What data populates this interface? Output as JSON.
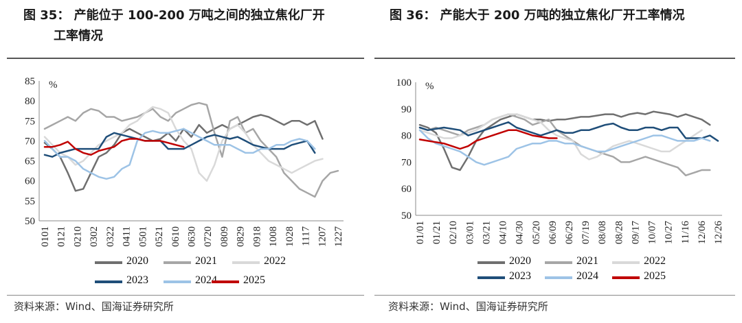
{
  "figure_left": {
    "title_line1": "图 35：  产能位于 100-200 万吨之间的独立焦化厂开",
    "title_line2": "工率情况",
    "source": "资料来源：Wind、国海证券研究所"
  },
  "figure_right": {
    "title_line1": "图 36：  产能大于 200 万吨的独立焦化厂开工率情况",
    "source": "资料来源：Wind、国海证券研究所"
  },
  "colors": {
    "2020": "#6f6f6f",
    "2021": "#a6a6a6",
    "2022": "#d9d9d9",
    "2023": "#1f4e79",
    "2024": "#9dc3e6",
    "2025": "#c00000"
  },
  "chart_data": [
    {
      "type": "line",
      "title": "产能位于 100-200 万吨之间的独立焦化厂开工率情况",
      "unit_label": "%",
      "ylim": [
        50,
        85
      ],
      "yticks": [
        "85",
        "80",
        "75",
        "70",
        "65",
        "60",
        "55",
        "50"
      ],
      "xlabel_ticks": [
        "0101",
        "0121",
        "0210",
        "0302",
        "0322",
        "0411",
        "0501",
        "0521",
        "0610",
        "0630",
        "0720",
        "0809",
        "0829",
        "0918",
        "1008",
        "1028",
        "1117",
        "1207",
        "1227"
      ],
      "legend": [
        "2020",
        "2021",
        "2022",
        "2023",
        "2024",
        "2025"
      ],
      "series": [
        {
          "name": "2020",
          "values": [
            69.5,
            68,
            66,
            62,
            57.5,
            58,
            62,
            66,
            67,
            69,
            72,
            73,
            72,
            71,
            70,
            70.5,
            72,
            70,
            73,
            71,
            74,
            72,
            73,
            74,
            73,
            74,
            75,
            76,
            76.5,
            76,
            75,
            74,
            75,
            75,
            74,
            75,
            70.5
          ]
        },
        {
          "name": "2021",
          "values": [
            73,
            74,
            75,
            76,
            75,
            77,
            78,
            77.5,
            76,
            76,
            75,
            75.5,
            76,
            77,
            78,
            76,
            75,
            77,
            78,
            79,
            79.5,
            79,
            72,
            66,
            75,
            76,
            72,
            73,
            70,
            68,
            66,
            62,
            60,
            58,
            57,
            56,
            60,
            62,
            62.5
          ]
        },
        {
          "name": "2022",
          "values": [
            71,
            69,
            67,
            66,
            64,
            65,
            67,
            69,
            70,
            71,
            72,
            74,
            75,
            77,
            78.5,
            78,
            77,
            73,
            70,
            68,
            62,
            60,
            64,
            70,
            73,
            74,
            72,
            69,
            67,
            65,
            64,
            63,
            62,
            63,
            64,
            65,
            65.5
          ]
        },
        {
          "name": "2023",
          "values": [
            66.5,
            66,
            67,
            67.5,
            68,
            68,
            68,
            68,
            71,
            72,
            71.5,
            71,
            70.5,
            70,
            70,
            70,
            68,
            68,
            68,
            69,
            70,
            71,
            71.5,
            71,
            70.5,
            71,
            70,
            69,
            68.5,
            68,
            68,
            68,
            69,
            69.5,
            70,
            67
          ]
        },
        {
          "name": "2024",
          "values": [
            70,
            68,
            66,
            66,
            65,
            63,
            62,
            61,
            60.5,
            61,
            63,
            64,
            70,
            72,
            72.5,
            72,
            72,
            72.5,
            73,
            72,
            71,
            70,
            69,
            69,
            69,
            68,
            67,
            67,
            68,
            68,
            69,
            69,
            70,
            70.5,
            70,
            68
          ]
        },
        {
          "name": "2025",
          "values": [
            68.5,
            68.5,
            69,
            69.8,
            68,
            67,
            66.5,
            67.5,
            68,
            68.5,
            70,
            70.5,
            70.5,
            70,
            70,
            70,
            69.5,
            69,
            68.5
          ]
        }
      ]
    },
    {
      "type": "line",
      "title": "产能大于 200 万吨的独立焦化厂开工率情况",
      "unit_label": "%",
      "ylim": [
        50,
        100
      ],
      "yticks": [
        "100",
        "90",
        "80",
        "70",
        "60",
        "50"
      ],
      "xlabel_ticks": [
        "01/01",
        "01/21",
        "02/10",
        "03/01",
        "03/21",
        "04/10",
        "04/30",
        "05/20",
        "06/09",
        "06/29",
        "07/19",
        "08/08",
        "08/28",
        "09/17",
        "10/07",
        "10/27",
        "11/16",
        "12/06",
        "12/26"
      ],
      "legend": [
        "2020",
        "2021",
        "2022",
        "2023",
        "2024",
        "2025"
      ],
      "series": [
        {
          "name": "2020",
          "values": [
            84,
            83,
            81,
            75,
            68,
            67,
            72,
            78,
            82,
            84,
            86,
            87,
            88,
            87,
            86,
            86,
            85.5,
            86,
            86,
            86.5,
            87,
            87,
            87.5,
            88,
            88,
            87,
            88,
            88.5,
            88,
            89,
            88.5,
            88,
            87,
            88,
            87,
            86,
            84
          ]
        },
        {
          "name": "2021",
          "values": [
            83,
            82,
            83,
            82,
            81,
            80,
            82,
            83,
            84,
            86,
            87,
            88,
            87,
            86,
            84,
            85,
            86,
            82,
            80,
            78,
            76,
            75,
            74,
            73,
            72,
            70,
            70,
            71,
            72,
            71,
            70,
            69,
            68,
            65,
            66,
            67,
            67
          ]
        },
        {
          "name": "2022",
          "values": [
            82,
            81,
            80,
            79,
            79,
            80,
            81,
            82,
            84,
            86,
            87,
            88,
            88,
            87,
            86,
            85,
            82,
            80,
            79,
            78,
            73,
            71,
            72,
            74,
            76,
            77,
            78,
            77,
            76,
            75,
            74,
            74,
            76,
            78,
            80,
            82
          ]
        },
        {
          "name": "2023",
          "values": [
            83,
            82,
            82.5,
            83,
            82.5,
            82,
            80,
            81,
            82,
            83,
            84,
            85,
            83,
            82,
            81,
            80,
            81,
            82,
            81,
            81,
            82,
            82,
            83,
            84,
            84.5,
            83,
            82,
            82,
            83,
            83,
            82,
            83,
            83,
            79,
            79,
            79,
            80,
            78
          ]
        },
        {
          "name": "2024",
          "values": [
            82,
            79,
            77,
            76,
            75,
            74,
            72,
            70,
            69,
            70,
            71,
            72,
            75,
            76,
            77,
            77,
            78,
            78,
            77,
            77,
            76,
            75,
            74,
            74,
            75,
            76,
            77,
            78,
            79,
            80,
            80,
            79,
            78,
            78,
            78,
            79,
            78
          ]
        },
        {
          "name": "2025",
          "values": [
            78.5,
            78,
            77.5,
            77,
            76,
            75,
            76,
            78,
            79,
            80,
            81,
            82,
            82,
            81,
            80,
            79.5,
            79,
            79
          ]
        }
      ]
    }
  ]
}
